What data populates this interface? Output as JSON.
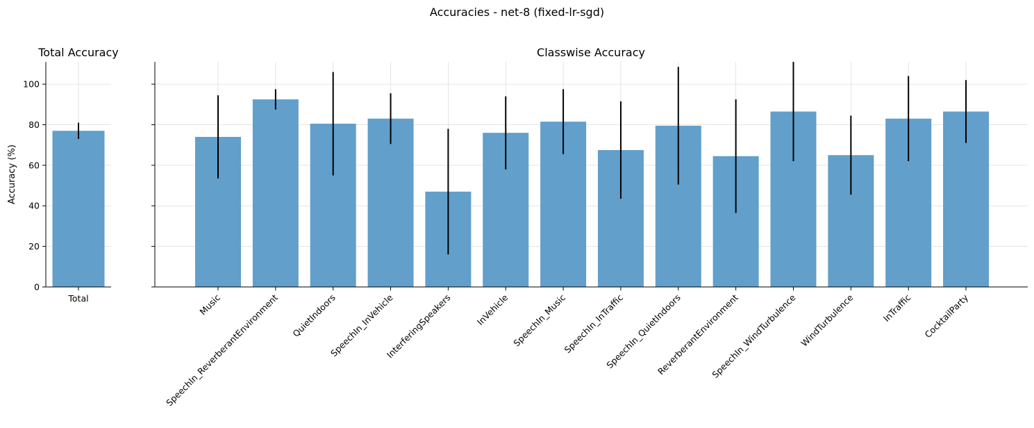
{
  "figure": {
    "suptitle": "Accuracies - net-8 (fixed-lr-sgd)"
  },
  "chart_data": [
    {
      "type": "bar",
      "title": "Total Accuracy",
      "xlabel": "",
      "ylabel": "Accuracy (%)",
      "ylim": [
        0,
        111
      ],
      "yticks": [
        0,
        20,
        40,
        60,
        80,
        100
      ],
      "grid": true,
      "categories": [
        "Total"
      ],
      "values": [
        77
      ],
      "errors": [
        4
      ],
      "bar_color": "#629fcb"
    },
    {
      "type": "bar",
      "title": "Classwise Accuracy",
      "xlabel": "",
      "ylabel": "",
      "ylim": [
        0,
        111
      ],
      "yticks": [
        0,
        20,
        40,
        60,
        80,
        100
      ],
      "grid": true,
      "categories": [
        "Music",
        "SpeechIn_ReverberantEnvironment",
        "QuietIndoors",
        "SpeechIn_InVehicle",
        "InterferingSpeakers",
        "InVehicle",
        "SpeechIn_Music",
        "SpeechIn_InTraffic",
        "SpeechIn_QuietIndoors",
        "ReverberantEnvironment",
        "SpeechIn_WindTurbulence",
        "WindTurbulence",
        "InTraffic",
        "CocktailParty"
      ],
      "values": [
        74,
        92.5,
        80.5,
        83,
        47,
        76,
        81.5,
        67.5,
        79.5,
        64.5,
        86.5,
        65,
        83,
        86.5
      ],
      "errors": [
        20.5,
        5,
        25.5,
        12.5,
        31,
        18,
        16,
        24,
        29,
        28,
        24.5,
        19.5,
        21,
        15.5
      ],
      "bar_color": "#629fcb"
    }
  ]
}
